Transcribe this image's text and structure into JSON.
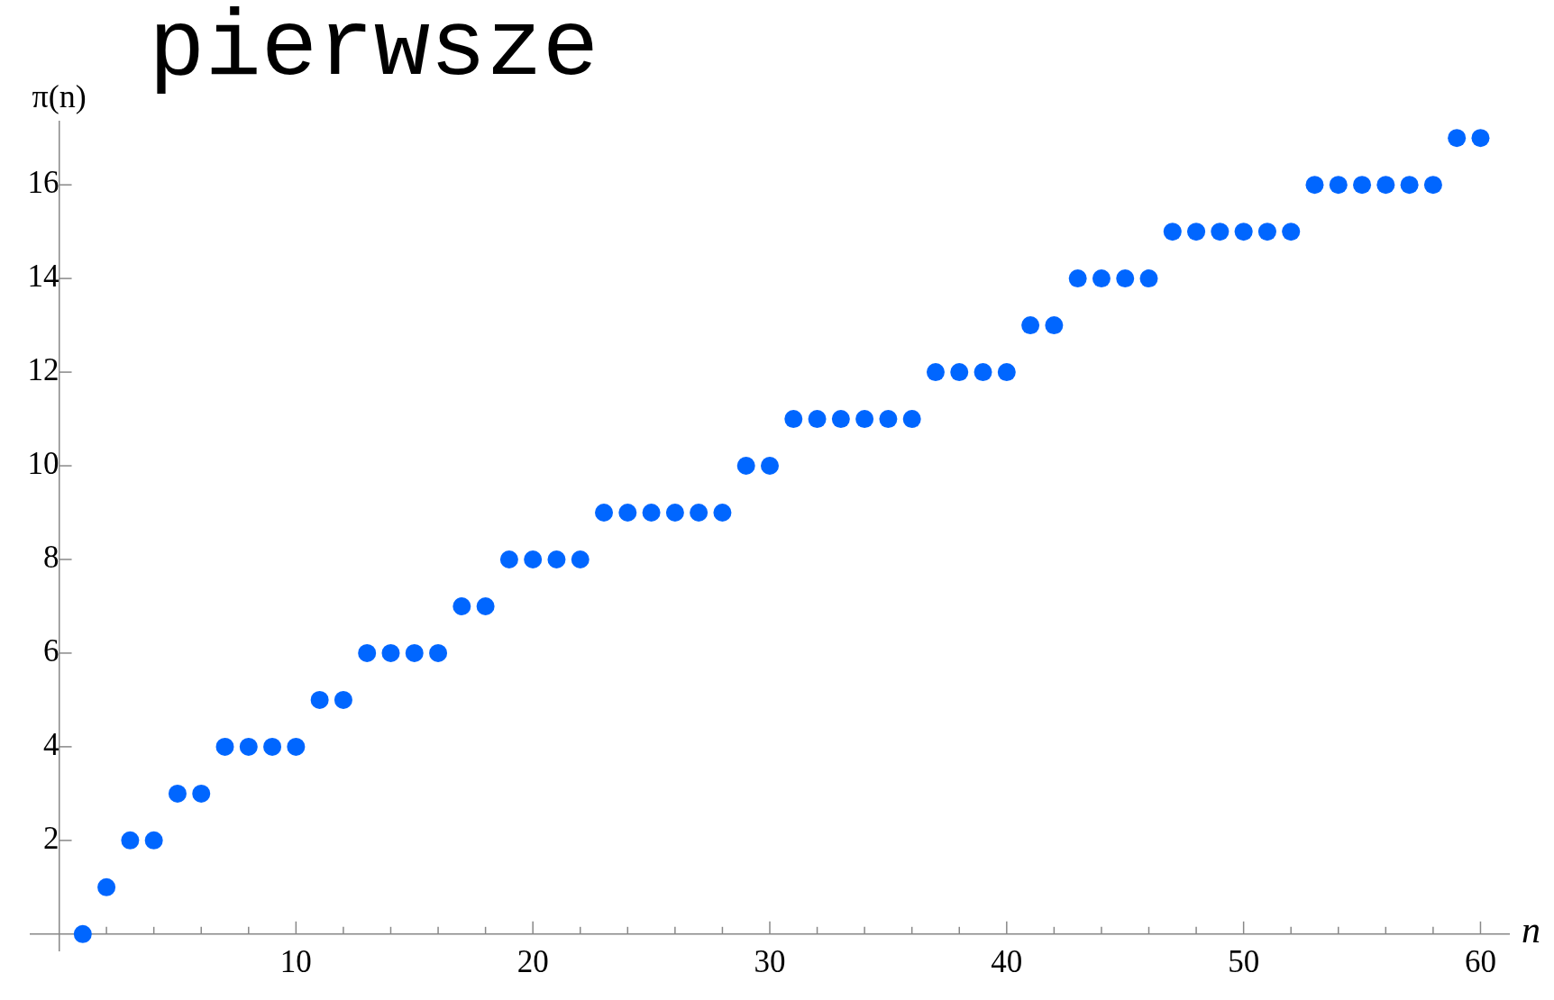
{
  "chart_data": {
    "type": "scatter",
    "title": "pierwsze",
    "xlabel": "n",
    "ylabel": "π(n)",
    "x": [
      1,
      2,
      3,
      4,
      5,
      6,
      7,
      8,
      9,
      10,
      11,
      12,
      13,
      14,
      15,
      16,
      17,
      18,
      19,
      20,
      21,
      22,
      23,
      24,
      25,
      26,
      27,
      28,
      29,
      30,
      31,
      32,
      33,
      34,
      35,
      36,
      37,
      38,
      39,
      40,
      41,
      42,
      43,
      44,
      45,
      46,
      47,
      48,
      49,
      50,
      51,
      52,
      53,
      54,
      55,
      56,
      57,
      58,
      59,
      60
    ],
    "values": [
      0,
      1,
      2,
      2,
      3,
      3,
      4,
      4,
      4,
      4,
      5,
      5,
      6,
      6,
      6,
      6,
      7,
      7,
      8,
      8,
      8,
      8,
      9,
      9,
      9,
      9,
      9,
      9,
      10,
      10,
      11,
      11,
      11,
      11,
      11,
      11,
      12,
      12,
      12,
      12,
      13,
      13,
      14,
      14,
      14,
      14,
      15,
      15,
      15,
      15,
      15,
      15,
      16,
      16,
      16,
      16,
      16,
      16,
      17,
      17
    ],
    "color": "#0066ff",
    "marker": "circle",
    "xlim": [
      -1.2,
      61.2
    ],
    "ylim": [
      -0.35,
      17.35
    ],
    "xticks": [
      {
        "value": 2,
        "label": null
      },
      {
        "value": 4,
        "label": null
      },
      {
        "value": 6,
        "label": null
      },
      {
        "value": 8,
        "label": null
      },
      10,
      {
        "value": 12,
        "label": null
      },
      {
        "value": 14,
        "label": null
      },
      {
        "value": 16,
        "label": null
      },
      {
        "value": 18,
        "label": null
      },
      20,
      {
        "value": 22,
        "label": null
      },
      {
        "value": 24,
        "label": null
      },
      {
        "value": 26,
        "label": null
      },
      {
        "value": 28,
        "label": null
      },
      30,
      {
        "value": 32,
        "label": null
      },
      {
        "value": 34,
        "label": null
      },
      {
        "value": 36,
        "label": null
      },
      {
        "value": 38,
        "label": null
      },
      40,
      {
        "value": 42,
        "label": null
      },
      {
        "value": 44,
        "label": null
      },
      {
        "value": 46,
        "label": null
      },
      {
        "value": 48,
        "label": null
      },
      50,
      {
        "value": 52,
        "label": null
      },
      {
        "value": 54,
        "label": null
      },
      {
        "value": 56,
        "label": null
      },
      {
        "value": 58,
        "label": null
      },
      60
    ],
    "yticks": [
      2,
      4,
      6,
      8,
      10,
      12,
      14,
      16
    ],
    "grid": false,
    "legend": false
  }
}
